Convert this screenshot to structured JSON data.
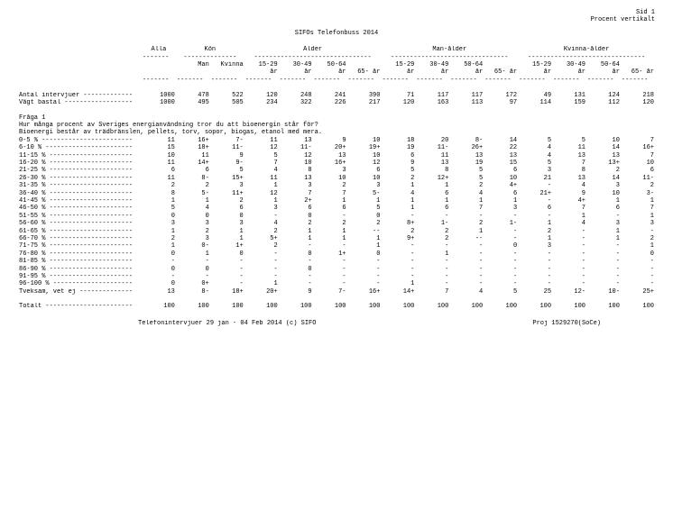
{
  "page": {
    "sid": "Sid 1",
    "pv": "Procent vertikalt"
  },
  "title": "SIFOs Telefonbuss 2014",
  "groups": {
    "alla": "Alla",
    "kon": "Kön",
    "alder": "Ålder",
    "manalder": "Man-ålder",
    "kvinnaalder": "Kvinna-ålder"
  },
  "sub": {
    "man": "Man",
    "kvinna": "Kvinna",
    "a1": "15-29",
    "a2": "30-49",
    "a3": "50-64",
    "a4": "65- år",
    "ar": "år"
  },
  "rows": {
    "antal": {
      "label": "Antal intervjuer -------------",
      "v": [
        "1000",
        "478",
        "522",
        "120",
        "248",
        "241",
        "390",
        "71",
        "117",
        "117",
        "172",
        "49",
        "131",
        "124",
        "218"
      ]
    },
    "vagt": {
      "label": "Vägt bastal ------------------",
      "v": [
        "1000",
        "495",
        "505",
        "234",
        "322",
        "226",
        "217",
        "120",
        "163",
        "113",
        "97",
        "114",
        "159",
        "112",
        "120"
      ]
    }
  },
  "question": {
    "head": "Fråga 1",
    "line1": "Hur många procent av Sveriges energianvändning tror du att bioenergin står för?",
    "line2": "Bioenergi består av trädbränslen, pellets, torv, sopor, biogas, etanol med mera."
  },
  "data": [
    {
      "l": "0-5 % ------------------------",
      "v": [
        "11",
        "16+",
        "7-",
        "11",
        "13",
        "9",
        "10",
        "18",
        "20",
        "8-",
        "14",
        "5",
        "5",
        "10",
        "7"
      ]
    },
    {
      "l": "6-10 % -----------------------",
      "v": [
        "15",
        "18+",
        "11-",
        "12",
        "11-",
        "20+",
        "19+",
        "19",
        "11-",
        "26+",
        "22",
        "4",
        "11",
        "14",
        "16+"
      ]
    },
    {
      "l": "11-15 % ----------------------",
      "v": [
        "10",
        "11",
        "9",
        "5",
        "12",
        "13",
        "10",
        "6",
        "11",
        "13",
        "13",
        "4",
        "13",
        "13",
        "7"
      ]
    },
    {
      "l": "16-20 % ----------------------",
      "v": [
        "11",
        "14+",
        "9-",
        "7",
        "10",
        "16+",
        "12",
        "9",
        "13",
        "19",
        "15",
        "5",
        "7",
        "13+",
        "10"
      ]
    },
    {
      "l": "21-25 % ----------------------",
      "v": [
        "6",
        "6",
        "5",
        "4",
        "8",
        "3",
        "6",
        "5",
        "8",
        "5",
        "6",
        "3",
        "8",
        "2",
        "6"
      ]
    },
    {
      "l": "26-30 % ----------------------",
      "v": [
        "11",
        "8-",
        "15+",
        "11",
        "13",
        "10",
        "10",
        "2",
        "12+",
        "5",
        "10",
        "21",
        "13",
        "14",
        "11-"
      ]
    },
    {
      "l": "31-35 % ----------------------",
      "v": [
        "2",
        "2",
        "3",
        "1",
        "3",
        "2",
        "3",
        "1",
        "1",
        "2",
        "4+",
        "-",
        "4",
        "3",
        "2"
      ]
    },
    {
      "l": "36-40 % ----------------------",
      "v": [
        "8",
        "5-",
        "11+",
        "12",
        "7",
        "7",
        "5-",
        "4",
        "6",
        "4",
        "6",
        "21+",
        "9",
        "10",
        "3-"
      ]
    },
    {
      "l": "41-45 % ----------------------",
      "v": [
        "1",
        "1",
        "2",
        "1",
        "2+",
        "1",
        "1",
        "1",
        "1",
        "1",
        "1",
        "-",
        "4+",
        "1",
        "1"
      ]
    },
    {
      "l": "46-50 % ----------------------",
      "v": [
        "5",
        "4",
        "6",
        "3",
        "6",
        "6",
        "5",
        "1",
        "6",
        "7",
        "3",
        "6",
        "7",
        "6",
        "7"
      ]
    },
    {
      "l": "51-55 % ----------------------",
      "v": [
        "0",
        "0",
        "0",
        "-",
        "0",
        "-",
        "0",
        "-",
        "-",
        "-",
        "-",
        "-",
        "1",
        "-",
        "1"
      ]
    },
    {
      "l": "56-60 % ----------------------",
      "v": [
        "3",
        "3",
        "3",
        "4",
        "2",
        "2",
        "2",
        "8+",
        "1-",
        "2",
        "1-",
        "1",
        "4",
        "3",
        "3"
      ]
    },
    {
      "l": "61-65 % ----------------------",
      "v": [
        "1",
        "2",
        "1",
        "2",
        "1",
        "1",
        "--",
        "2",
        "2",
        "1",
        "-",
        "2",
        "-",
        "1",
        "-"
      ]
    },
    {
      "l": "66-70 % ----------------------",
      "v": [
        "2",
        "3",
        "1",
        "5+",
        "1",
        "1",
        "1",
        "9+",
        "2",
        "--",
        "-",
        "1",
        "-",
        "1",
        "2"
      ]
    },
    {
      "l": "71-75 % ----------------------",
      "v": [
        "1",
        "0-",
        "1+",
        "2",
        "-",
        "-",
        "1",
        "-",
        "-",
        "-",
        "0",
        "3",
        "-",
        "-",
        "1"
      ]
    },
    {
      "l": "76-80 % ----------------------",
      "v": [
        "0",
        "1",
        "0",
        "-",
        "0",
        "1+",
        "0",
        "-",
        "1",
        "-",
        "-",
        "-",
        "-",
        "-",
        "0"
      ]
    },
    {
      "l": "81-85 % ----------------------",
      "v": [
        "-",
        "-",
        "-",
        "-",
        "-",
        "-",
        "-",
        "-",
        "-",
        "-",
        "-",
        "-",
        "-",
        "-",
        "-"
      ]
    },
    {
      "l": "86-90 % ----------------------",
      "v": [
        "0",
        "0",
        "-",
        "-",
        "0",
        "-",
        "-",
        "-",
        "-",
        "-",
        "-",
        "-",
        "-",
        "-",
        "-"
      ]
    },
    {
      "l": "91-95 % ----------------------",
      "v": [
        "-",
        "-",
        "-",
        "-",
        "-",
        "-",
        "-",
        "-",
        "-",
        "-",
        "-",
        "-",
        "-",
        "-",
        "-"
      ]
    },
    {
      "l": "96-100 % ---------------------",
      "v": [
        "0",
        "0+",
        "-",
        "1",
        "-",
        "-",
        "-",
        "1",
        "-",
        "-",
        "-",
        "-",
        "-",
        "-",
        "-"
      ]
    },
    {
      "l": "Tveksam, vet ej --------------",
      "v": [
        "13",
        "8-",
        "18+",
        "20+",
        "9",
        "7-",
        "16+",
        "14+",
        "7",
        "4",
        "5",
        "25",
        "12-",
        "10-",
        "25+"
      ]
    }
  ],
  "total": {
    "l": "Totalt -----------------------",
    "v": [
      "100",
      "100",
      "100",
      "100",
      "100",
      "100",
      "100",
      "100",
      "100",
      "100",
      "100",
      "100",
      "100",
      "100",
      "100"
    ]
  },
  "footer": {
    "left": "Telefonintervjuer 29 jan - 04 Feb 2014  (c) SIFO",
    "right": "Proj 1529270(SoCe)"
  },
  "dash": {
    "short": "-------",
    "group2": "--------------",
    "group4": "-------------------------------"
  }
}
